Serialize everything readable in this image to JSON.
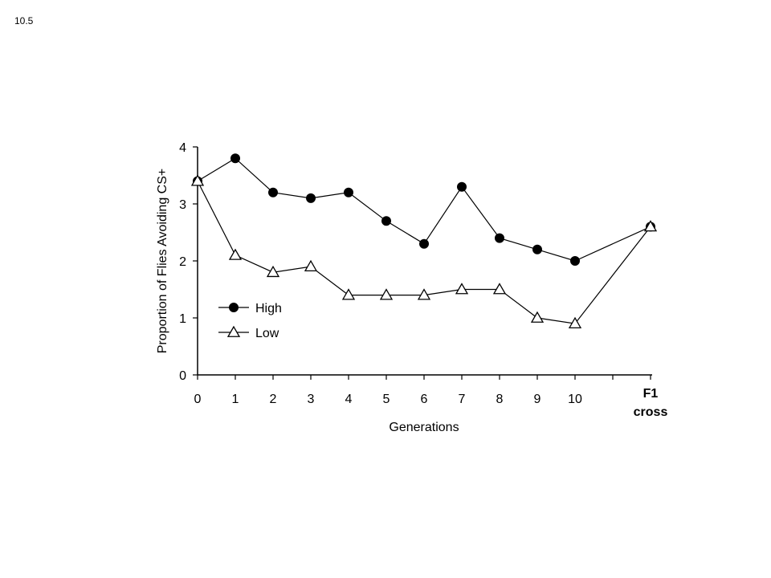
{
  "slide_number": "10.5",
  "chart_data": {
    "type": "line",
    "title": "",
    "xlabel": "Generations",
    "ylabel": "Proportion of Flies Avoiding CS+",
    "ylim": [
      0,
      4
    ],
    "yticks": [
      0,
      1,
      2,
      3,
      4
    ],
    "categories": [
      "0",
      "1",
      "2",
      "3",
      "4",
      "5",
      "6",
      "7",
      "8",
      "9",
      "10",
      "",
      "F1 cross"
    ],
    "extra_label": {
      "line1": "F1",
      "line2": "cross"
    },
    "grid": false,
    "legend": {
      "placement": "bottom-left"
    },
    "series": [
      {
        "name": "High",
        "marker": "filled-circle",
        "color": "#000000",
        "points": [
          {
            "x": 0,
            "y": 3.4
          },
          {
            "x": 1,
            "y": 3.8
          },
          {
            "x": 2,
            "y": 3.2
          },
          {
            "x": 3,
            "y": 3.1
          },
          {
            "x": 4,
            "y": 3.2
          },
          {
            "x": 5,
            "y": 2.7
          },
          {
            "x": 6,
            "y": 2.3
          },
          {
            "x": 7,
            "y": 3.3
          },
          {
            "x": 8,
            "y": 2.4
          },
          {
            "x": 9,
            "y": 2.2
          },
          {
            "x": 10,
            "y": 2.0
          },
          {
            "x": 12,
            "y": 2.6
          }
        ]
      },
      {
        "name": "Low",
        "marker": "open-triangle",
        "color": "#000000",
        "points": [
          {
            "x": 0,
            "y": 3.4
          },
          {
            "x": 1,
            "y": 2.1
          },
          {
            "x": 2,
            "y": 1.8
          },
          {
            "x": 3,
            "y": 1.9
          },
          {
            "x": 4,
            "y": 1.4
          },
          {
            "x": 5,
            "y": 1.4
          },
          {
            "x": 6,
            "y": 1.4
          },
          {
            "x": 7,
            "y": 1.5
          },
          {
            "x": 8,
            "y": 1.5
          },
          {
            "x": 9,
            "y": 1.0
          },
          {
            "x": 10,
            "y": 0.9
          },
          {
            "x": 12,
            "y": 2.6
          }
        ]
      }
    ]
  }
}
